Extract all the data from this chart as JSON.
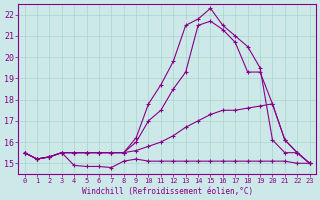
{
  "xlabel": "Windchill (Refroidissement éolien,°C)",
  "bg_color": "#cde8e8",
  "line_color": "#880088",
  "grid_color": "#aad4cc",
  "xlim": [
    -0.5,
    23.5
  ],
  "ylim": [
    14.5,
    22.5
  ],
  "yticks": [
    15,
    16,
    17,
    18,
    19,
    20,
    21,
    22
  ],
  "xticks": [
    0,
    1,
    2,
    3,
    4,
    5,
    6,
    7,
    8,
    9,
    10,
    11,
    12,
    13,
    14,
    15,
    16,
    17,
    18,
    19,
    20,
    21,
    22,
    23
  ],
  "series": [
    {
      "x": [
        0,
        1,
        2,
        3,
        4,
        5,
        6,
        7,
        8,
        9,
        10,
        11,
        12,
        13,
        14,
        15,
        16,
        17,
        18,
        19,
        20,
        21,
        22,
        23
      ],
      "y": [
        15.5,
        15.2,
        15.3,
        15.5,
        14.9,
        14.85,
        14.85,
        14.8,
        15.1,
        15.2,
        15.1,
        15.1,
        15.1,
        15.1,
        15.1,
        15.1,
        15.1,
        15.1,
        15.1,
        15.1,
        15.1,
        15.1,
        15.0,
        15.0
      ]
    },
    {
      "x": [
        0,
        1,
        2,
        3,
        4,
        5,
        6,
        7,
        8,
        9,
        10,
        11,
        12,
        13,
        14,
        15,
        16,
        17,
        18,
        19,
        20,
        21,
        22,
        23
      ],
      "y": [
        15.5,
        15.2,
        15.3,
        15.5,
        15.5,
        15.5,
        15.5,
        15.5,
        15.5,
        15.6,
        15.8,
        16.0,
        16.3,
        16.7,
        17.0,
        17.3,
        17.5,
        17.5,
        17.6,
        17.7,
        17.8,
        16.1,
        15.5,
        15.0
      ]
    },
    {
      "x": [
        0,
        1,
        2,
        3,
        4,
        5,
        6,
        7,
        8,
        9,
        10,
        11,
        12,
        13,
        14,
        15,
        16,
        17,
        18,
        19,
        20,
        21,
        22,
        23
      ],
      "y": [
        15.5,
        15.2,
        15.3,
        15.5,
        15.5,
        15.5,
        15.5,
        15.5,
        15.5,
        16.0,
        17.0,
        17.5,
        18.5,
        19.3,
        21.5,
        21.7,
        21.3,
        20.7,
        19.3,
        19.3,
        17.8,
        16.1,
        15.5,
        15.0
      ]
    },
    {
      "x": [
        0,
        1,
        2,
        3,
        4,
        5,
        6,
        7,
        8,
        9,
        10,
        11,
        12,
        13,
        14,
        15,
        16,
        17,
        18,
        19,
        20,
        21,
        22,
        23
      ],
      "y": [
        15.5,
        15.2,
        15.3,
        15.5,
        15.5,
        15.5,
        15.5,
        15.5,
        15.5,
        16.2,
        17.8,
        18.7,
        19.8,
        21.5,
        21.8,
        22.3,
        21.5,
        21.0,
        20.5,
        19.5,
        16.1,
        15.5,
        15.5,
        15.0
      ]
    }
  ]
}
